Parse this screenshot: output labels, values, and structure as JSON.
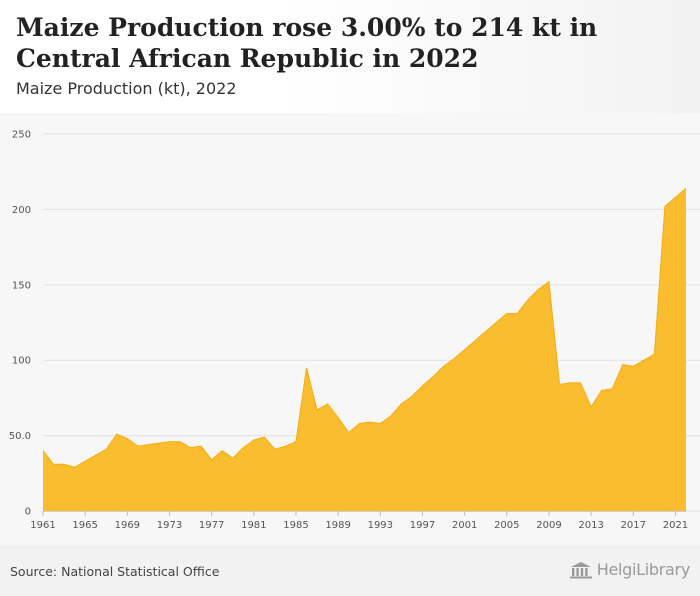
{
  "header": {
    "title": "Maize Production rose 3.00% to 214 kt in Central African Republic in 2022",
    "subtitle": "Maize Production (kt), 2022"
  },
  "footer": {
    "source": "Source: National Statistical Office",
    "logo_text": "HelgiLibrary",
    "logo_icon": "library-building-icon"
  },
  "colors": {
    "fill": "#fbbd30",
    "stroke": "#f4ad0f",
    "grid": "#e2e2e2"
  },
  "chart_data": {
    "type": "area",
    "title": "Maize Production rose 3.00% to 214 kt in Central African Republic in 2022",
    "subtitle": "Maize Production (kt), 2022",
    "xlabel": "",
    "ylabel": "",
    "ylim": [
      0,
      250
    ],
    "xlim": [
      1961,
      2022
    ],
    "grid": true,
    "legend": "none",
    "y_ticks": [
      {
        "value": 0,
        "label": "0"
      },
      {
        "value": 50,
        "label": "50.0"
      },
      {
        "value": 100,
        "label": "100"
      },
      {
        "value": 150,
        "label": "150"
      },
      {
        "value": 200,
        "label": "200"
      },
      {
        "value": 250,
        "label": "250"
      }
    ],
    "x_ticks": [
      "1961",
      "1965",
      "1969",
      "1973",
      "1977",
      "1981",
      "1985",
      "1989",
      "1993",
      "1997",
      "2001",
      "2005",
      "2009",
      "2013",
      "2017",
      "2021"
    ],
    "x": [
      1961,
      1962,
      1963,
      1964,
      1965,
      1966,
      1967,
      1968,
      1969,
      1970,
      1971,
      1972,
      1973,
      1974,
      1975,
      1976,
      1977,
      1978,
      1979,
      1980,
      1981,
      1982,
      1983,
      1984,
      1985,
      1986,
      1987,
      1988,
      1989,
      1990,
      1991,
      1992,
      1993,
      1994,
      1995,
      1996,
      1997,
      1998,
      1999,
      2000,
      2001,
      2002,
      2003,
      2004,
      2005,
      2006,
      2007,
      2008,
      2009,
      2010,
      2011,
      2012,
      2013,
      2014,
      2015,
      2016,
      2017,
      2018,
      2019,
      2020,
      2021,
      2022
    ],
    "series": [
      {
        "values": [
          40,
          31,
          31,
          29,
          33,
          37,
          41,
          51,
          48,
          43,
          44,
          45,
          46,
          46,
          42,
          43,
          34,
          40,
          35,
          42,
          47,
          49,
          41,
          43,
          46,
          95,
          67,
          71,
          62,
          52,
          58,
          59,
          58,
          63,
          71,
          76,
          83,
          89,
          96,
          101,
          107,
          113,
          119,
          125,
          131,
          131,
          140,
          147,
          152,
          84,
          85,
          85,
          69,
          80,
          81,
          97,
          96,
          100,
          104,
          202,
          208,
          214
        ]
      }
    ]
  }
}
